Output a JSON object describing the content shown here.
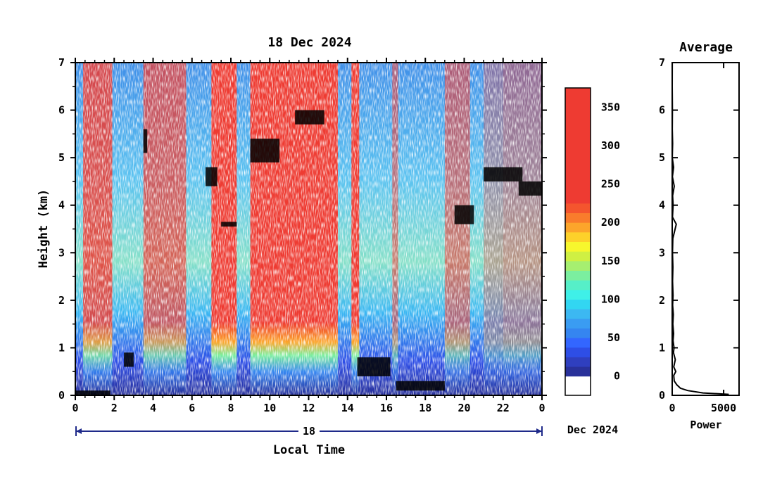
{
  "chart_data": [
    {
      "type": "heatmap",
      "title": "18 Dec 2024",
      "xlabel": "Local Time",
      "ylabel": "Height (km)",
      "x_ticks": [
        "0",
        "2",
        "4",
        "6",
        "8",
        "10",
        "12",
        "14",
        "16",
        "18",
        "20",
        "22",
        "0"
      ],
      "y_ticks": [
        "0",
        "1",
        "2",
        "3",
        "4",
        "5",
        "6",
        "7"
      ],
      "xlim": [
        0,
        24
      ],
      "ylim": [
        0,
        7
      ],
      "day_label": "18",
      "date_label": "Dec 2024",
      "colorbar": {
        "ticks": [
          "0",
          "50",
          "100",
          "150",
          "200",
          "250",
          "300",
          "350"
        ],
        "range": [
          -25,
          375
        ],
        "colors": [
          "#ffffff",
          "#29319a",
          "#2f3fbf",
          "#2e4ee6",
          "#3366ff",
          "#3585f0",
          "#3a9cf2",
          "#3cb8f2",
          "#32d6f2",
          "#3ff0e8",
          "#56efc8",
          "#7bef9f",
          "#a6ef70",
          "#cff043",
          "#f7f72d",
          "#fdd12a",
          "#fca52b",
          "#f97c2c",
          "#f4552e",
          "#ee3b32"
        ],
        "color_boundaries": [
          -25,
          0,
          12.5,
          25,
          37.5,
          50,
          62.5,
          75,
          87.5,
          100,
          112.5,
          125,
          137.5,
          150,
          162.5,
          175,
          187.5,
          200,
          212.5,
          225
        ]
      },
      "cloud_layers": [
        {
          "start": 0.0,
          "end": 1.8,
          "base": 0.0,
          "top": 0.1
        },
        {
          "start": 2.5,
          "end": 3.0,
          "base": 0.6,
          "top": 0.9
        },
        {
          "start": 3.5,
          "end": 3.7,
          "base": 5.1,
          "top": 5.6
        },
        {
          "start": 6.7,
          "end": 7.3,
          "base": 4.4,
          "top": 4.8
        },
        {
          "start": 7.5,
          "end": 8.3,
          "base": 3.55,
          "top": 3.65
        },
        {
          "start": 9.0,
          "end": 10.5,
          "base": 4.9,
          "top": 5.4
        },
        {
          "start": 11.3,
          "end": 12.8,
          "base": 5.7,
          "top": 6.0
        },
        {
          "start": 14.5,
          "end": 16.2,
          "base": 0.4,
          "top": 0.8
        },
        {
          "start": 16.5,
          "end": 19.0,
          "base": 0.1,
          "top": 0.3
        },
        {
          "start": 19.5,
          "end": 20.5,
          "base": 3.6,
          "top": 4.0
        },
        {
          "start": 21.0,
          "end": 23.0,
          "base": 4.5,
          "top": 4.8
        },
        {
          "start": 22.8,
          "end": 24.0,
          "base": 4.2,
          "top": 4.5
        }
      ]
    },
    {
      "type": "line",
      "title": "Average",
      "xlabel": "Power",
      "ylabel": "",
      "x_ticks": [
        "0",
        "5000"
      ],
      "y_ticks": [
        "0",
        "1",
        "2",
        "3",
        "4",
        "5",
        "6",
        "7"
      ],
      "xlim": [
        0,
        6500
      ],
      "ylim": [
        0,
        7
      ],
      "series": [
        {
          "x": [
            5500,
            3000,
            1500,
            800,
            450,
            200,
            150,
            350,
            150,
            300,
            120,
            180,
            80,
            140,
            60,
            110,
            40,
            80,
            35,
            70,
            30,
            60,
            400,
            30,
            90,
            40,
            200,
            20,
            140,
            10,
            40,
            5,
            20,
            3,
            8
          ],
          "y": [
            0.02,
            0.05,
            0.1,
            0.15,
            0.22,
            0.3,
            0.42,
            0.5,
            0.6,
            0.75,
            0.9,
            1.0,
            1.15,
            1.3,
            1.5,
            1.7,
            1.9,
            2.1,
            2.4,
            2.7,
            3.0,
            3.3,
            3.6,
            3.75,
            4.0,
            4.2,
            4.4,
            4.6,
            4.8,
            5.0,
            5.3,
            5.6,
            6.0,
            6.5,
            7.0
          ]
        }
      ]
    }
  ]
}
